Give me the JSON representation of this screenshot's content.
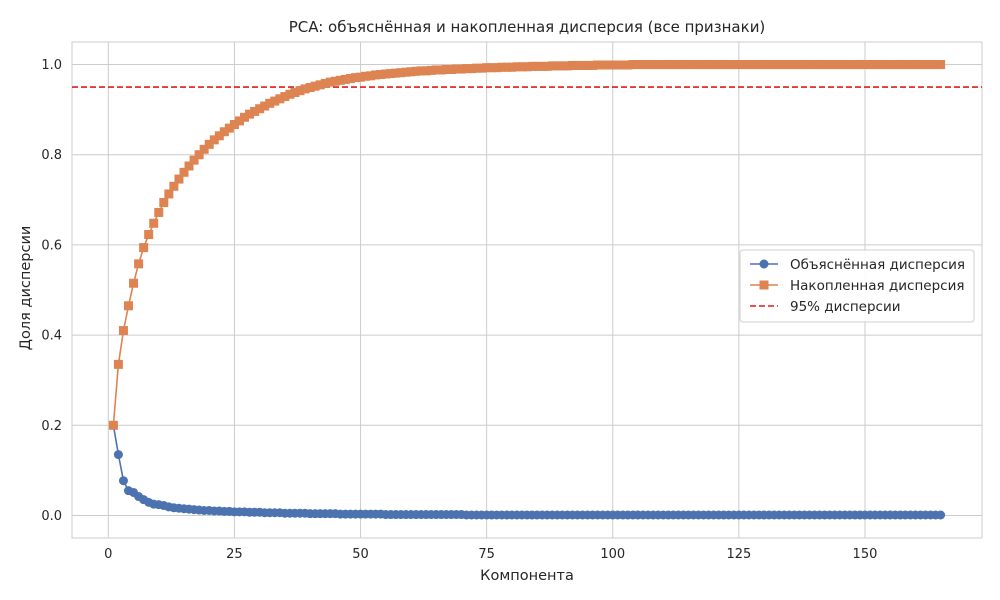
{
  "chart_data": {
    "type": "line",
    "title": "PCA: объяснённая и накопленная дисперсия (все признаки)",
    "xlabel": "Компонента",
    "ylabel": "Доля дисперсии",
    "xlim": [
      -7.2,
      173.2
    ],
    "ylim": [
      -0.05,
      1.05
    ],
    "xticks": [
      0,
      25,
      50,
      75,
      100,
      125,
      150
    ],
    "yticks": [
      0.0,
      0.2,
      0.4,
      0.6,
      0.8,
      1.0
    ],
    "xtick_labels": [
      "0",
      "25",
      "50",
      "75",
      "100",
      "125",
      "150"
    ],
    "ytick_labels": [
      "0.0",
      "0.2",
      "0.4",
      "0.6",
      "0.8",
      "1.0"
    ],
    "grid": true,
    "legend_position": "center-right",
    "n_components": 165,
    "series": [
      {
        "name": "Объяснённая дисперсия",
        "marker": "circle",
        "color": "#4c72b0",
        "x": [
          1,
          2,
          3,
          4,
          5,
          6,
          7,
          8,
          9,
          10,
          11,
          12,
          13,
          14,
          15,
          16,
          17,
          18,
          19,
          20,
          21,
          22,
          23,
          24,
          25,
          26,
          27,
          28,
          29,
          30,
          31,
          32,
          33,
          34,
          35,
          36,
          37,
          38,
          39,
          40,
          41,
          42,
          43,
          44,
          45,
          46,
          47,
          48,
          49,
          50,
          51,
          52,
          53,
          54,
          55,
          56,
          57,
          58,
          59,
          60,
          61,
          62,
          63,
          64,
          65,
          66,
          67,
          68,
          69,
          70,
          71,
          72,
          73,
          74,
          75,
          76,
          77,
          78,
          79,
          80,
          81,
          82,
          83,
          84,
          85,
          86,
          87,
          88,
          89,
          90,
          91,
          92,
          93,
          94,
          95,
          96,
          97,
          98,
          99,
          100,
          101,
          102,
          103,
          104,
          105,
          106,
          107,
          108,
          109,
          110,
          111,
          112,
          113,
          114,
          115,
          116,
          117,
          118,
          119,
          120,
          121,
          122,
          123,
          124,
          125,
          126,
          127,
          128,
          129,
          130,
          131,
          132,
          133,
          134,
          135,
          136,
          137,
          138,
          139,
          140,
          141,
          142,
          143,
          144,
          145,
          146,
          147,
          148,
          149,
          150,
          151,
          152,
          153,
          154,
          155,
          156,
          157,
          158,
          159,
          160,
          161,
          162,
          163,
          164,
          165
        ],
        "values": [
          0.2,
          0.135,
          0.077,
          0.055,
          0.051,
          0.042,
          0.035,
          0.029,
          0.025,
          0.024,
          0.022,
          0.019,
          0.017,
          0.016,
          0.015,
          0.014,
          0.013,
          0.012,
          0.011,
          0.011,
          0.01,
          0.01,
          0.009,
          0.009,
          0.008,
          0.008,
          0.008,
          0.007,
          0.007,
          0.007,
          0.006,
          0.006,
          0.006,
          0.006,
          0.005,
          0.005,
          0.005,
          0.005,
          0.005,
          0.004,
          0.004,
          0.004,
          0.004,
          0.004,
          0.004,
          0.003,
          0.003,
          0.003,
          0.003,
          0.003,
          0.003,
          0.003,
          0.003,
          0.003,
          0.002,
          0.002,
          0.002,
          0.002,
          0.002,
          0.002,
          0.002,
          0.002,
          0.002,
          0.002,
          0.002,
          0.002,
          0.002,
          0.002,
          0.002,
          0.002,
          0.001,
          0.001,
          0.001,
          0.001,
          0.001,
          0.001,
          0.001,
          0.001,
          0.001,
          0.001,
          0.001,
          0.001,
          0.001,
          0.001,
          0.001,
          0.001,
          0.001,
          0.001,
          0.001,
          0.001,
          0.001,
          0.001,
          0.001,
          0.001,
          0.001,
          0.001,
          0.001,
          0.001,
          0.001,
          0.001,
          0.001,
          0.001,
          0.001,
          0.001,
          0.001,
          0.001,
          0.001,
          0.001,
          0.001,
          0.001,
          0.001,
          0.001,
          0.001,
          0.001,
          0.001,
          0.001,
          0.001,
          0.001,
          0.001,
          0.001,
          0.001,
          0.001,
          0.001,
          0.001,
          0.001,
          0.001,
          0.001,
          0.001,
          0.001,
          0.001,
          0.001,
          0.001,
          0.001,
          0.001,
          0.001,
          0.001,
          0.001,
          0.001,
          0.001,
          0.001,
          0.001,
          0.001,
          0.001,
          0.001,
          0.001,
          0.001,
          0.001,
          0.001,
          0.001,
          0.001,
          0.001,
          0.001,
          0.001,
          0.001,
          0.001,
          0.001,
          0.001,
          0.001,
          0.001,
          0.001,
          0.001,
          0.001,
          0.001,
          0.001,
          0.001
        ]
      },
      {
        "name": "Накопленная дисперсия",
        "marker": "square",
        "color": "#dd8452",
        "x": [
          1,
          2,
          3,
          4,
          5,
          6,
          7,
          8,
          9,
          10,
          11,
          12,
          13,
          14,
          15,
          16,
          17,
          18,
          19,
          20,
          21,
          22,
          23,
          24,
          25,
          26,
          27,
          28,
          29,
          30,
          31,
          32,
          33,
          34,
          35,
          36,
          37,
          38,
          39,
          40,
          41,
          42,
          43,
          44,
          45,
          46,
          47,
          48,
          49,
          50,
          51,
          52,
          53,
          54,
          55,
          56,
          57,
          58,
          59,
          60,
          61,
          62,
          63,
          64,
          65,
          66,
          67,
          68,
          69,
          70,
          71,
          72,
          73,
          74,
          75,
          76,
          77,
          78,
          79,
          80,
          81,
          82,
          83,
          84,
          85,
          86,
          87,
          88,
          89,
          90,
          91,
          92,
          93,
          94,
          95,
          96,
          97,
          98,
          99,
          100,
          101,
          102,
          103,
          104,
          105,
          106,
          107,
          108,
          109,
          110,
          111,
          112,
          113,
          114,
          115,
          116,
          117,
          118,
          119,
          120,
          121,
          122,
          123,
          124,
          125,
          126,
          127,
          128,
          129,
          130,
          131,
          132,
          133,
          134,
          135,
          136,
          137,
          138,
          139,
          140,
          141,
          142,
          143,
          144,
          145,
          146,
          147,
          148,
          149,
          150,
          151,
          152,
          153,
          154,
          155,
          156,
          157,
          158,
          159,
          160,
          161,
          162,
          163,
          164,
          165
        ],
        "values": [
          0.2,
          0.335,
          0.41,
          0.465,
          0.515,
          0.558,
          0.594,
          0.623,
          0.648,
          0.672,
          0.694,
          0.713,
          0.73,
          0.746,
          0.761,
          0.775,
          0.788,
          0.8,
          0.812,
          0.823,
          0.833,
          0.842,
          0.851,
          0.859,
          0.867,
          0.875,
          0.883,
          0.89,
          0.896,
          0.902,
          0.908,
          0.914,
          0.919,
          0.924,
          0.929,
          0.934,
          0.938,
          0.942,
          0.946,
          0.949,
          0.952,
          0.955,
          0.958,
          0.961,
          0.963,
          0.965,
          0.967,
          0.969,
          0.971,
          0.972,
          0.974,
          0.975,
          0.977,
          0.978,
          0.979,
          0.98,
          0.981,
          0.982,
          0.983,
          0.984,
          0.985,
          0.986,
          0.986,
          0.987,
          0.988,
          0.988,
          0.989,
          0.989,
          0.99,
          0.99,
          0.991,
          0.991,
          0.992,
          0.992,
          0.993,
          0.993,
          0.993,
          0.994,
          0.994,
          0.994,
          0.995,
          0.995,
          0.995,
          0.996,
          0.996,
          0.996,
          0.996,
          0.997,
          0.997,
          0.997,
          0.997,
          0.998,
          0.998,
          0.998,
          0.998,
          0.998,
          0.999,
          0.999,
          0.999,
          0.999,
          0.999,
          0.999,
          0.999,
          1.0,
          1.0,
          1.0,
          1.0,
          1.0,
          1.0,
          1.0,
          1.0,
          1.0,
          1.0,
          1.0,
          1.0,
          1.0,
          1.0,
          1.0,
          1.0,
          1.0,
          1.0,
          1.0,
          1.0,
          1.0,
          1.0,
          1.0,
          1.0,
          1.0,
          1.0,
          1.0,
          1.0,
          1.0,
          1.0,
          1.0,
          1.0,
          1.0,
          1.0,
          1.0,
          1.0,
          1.0,
          1.0,
          1.0,
          1.0,
          1.0,
          1.0,
          1.0,
          1.0,
          1.0,
          1.0,
          1.0,
          1.0,
          1.0,
          1.0,
          1.0,
          1.0,
          1.0,
          1.0,
          1.0,
          1.0,
          1.0,
          1.0,
          1.0,
          1.0,
          1.0,
          1.0
        ]
      }
    ],
    "reference_lines": [
      {
        "name": "95% дисперсии",
        "axis": "y",
        "value": 0.95,
        "color": "#e31a1c",
        "style": "dashed"
      }
    ]
  }
}
